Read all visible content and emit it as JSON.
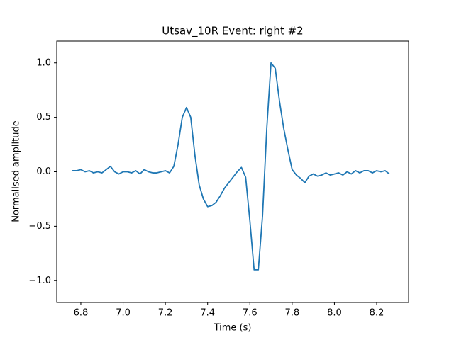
{
  "chart_data": {
    "type": "line",
    "title": "Utsav_10R Event: right #2",
    "xlabel": "Time (s)",
    "ylabel": "Normalised amplitude",
    "x": [
      6.76,
      6.78,
      6.8,
      6.82,
      6.84,
      6.86,
      6.88,
      6.9,
      6.92,
      6.94,
      6.96,
      6.98,
      7.0,
      7.02,
      7.04,
      7.06,
      7.08,
      7.1,
      7.12,
      7.14,
      7.16,
      7.18,
      7.2,
      7.22,
      7.24,
      7.26,
      7.28,
      7.3,
      7.32,
      7.34,
      7.36,
      7.38,
      7.4,
      7.42,
      7.44,
      7.46,
      7.48,
      7.5,
      7.52,
      7.54,
      7.56,
      7.58,
      7.6,
      7.62,
      7.64,
      7.66,
      7.68,
      7.7,
      7.72,
      7.74,
      7.76,
      7.78,
      7.8,
      7.82,
      7.84,
      7.86,
      7.88,
      7.9,
      7.92,
      7.94,
      7.96,
      7.98,
      8.0,
      8.02,
      8.04,
      8.06,
      8.08,
      8.1,
      8.12,
      8.14,
      8.16,
      8.18,
      8.2,
      8.22,
      8.24,
      8.26
    ],
    "series": [
      {
        "color": "#1f77b4",
        "values": [
          0.01,
          0.01,
          0.02,
          0.0,
          0.01,
          -0.01,
          0.0,
          -0.01,
          0.02,
          0.05,
          0.0,
          -0.02,
          0.0,
          0.0,
          -0.01,
          0.01,
          -0.02,
          0.02,
          0.0,
          -0.01,
          -0.01,
          0.0,
          0.01,
          -0.01,
          0.05,
          0.25,
          0.5,
          0.59,
          0.5,
          0.15,
          -0.12,
          -0.25,
          -0.32,
          -0.31,
          -0.28,
          -0.22,
          -0.15,
          -0.1,
          -0.05,
          0.0,
          0.04,
          -0.05,
          -0.45,
          -0.9,
          -0.9,
          -0.4,
          0.4,
          1.0,
          0.95,
          0.65,
          0.4,
          0.2,
          0.02,
          -0.03,
          -0.06,
          -0.1,
          -0.04,
          -0.02,
          -0.04,
          -0.03,
          -0.01,
          -0.03,
          -0.02,
          -0.01,
          -0.03,
          0.0,
          -0.02,
          0.01,
          -0.01,
          0.01,
          0.01,
          -0.01,
          0.01,
          0.0,
          0.01,
          -0.02
        ]
      }
    ],
    "xlim": [
      6.686,
      8.351
    ],
    "ylim": [
      -1.2,
      1.2
    ],
    "xticks": [
      6.8,
      {
        "value": 7.0,
        "label": "7.0"
      },
      7.2,
      7.4,
      7.6,
      7.8,
      {
        "value": 8.0,
        "label": "8.0"
      },
      8.2
    ],
    "yticks": [
      {
        "value": -1.0,
        "label": "−1.0"
      },
      {
        "value": -0.5,
        "label": "−0.5"
      },
      {
        "value": 0.0,
        "label": "0.0"
      },
      0.5,
      {
        "value": 1.0,
        "label": "1.0"
      }
    ],
    "grid": false
  }
}
